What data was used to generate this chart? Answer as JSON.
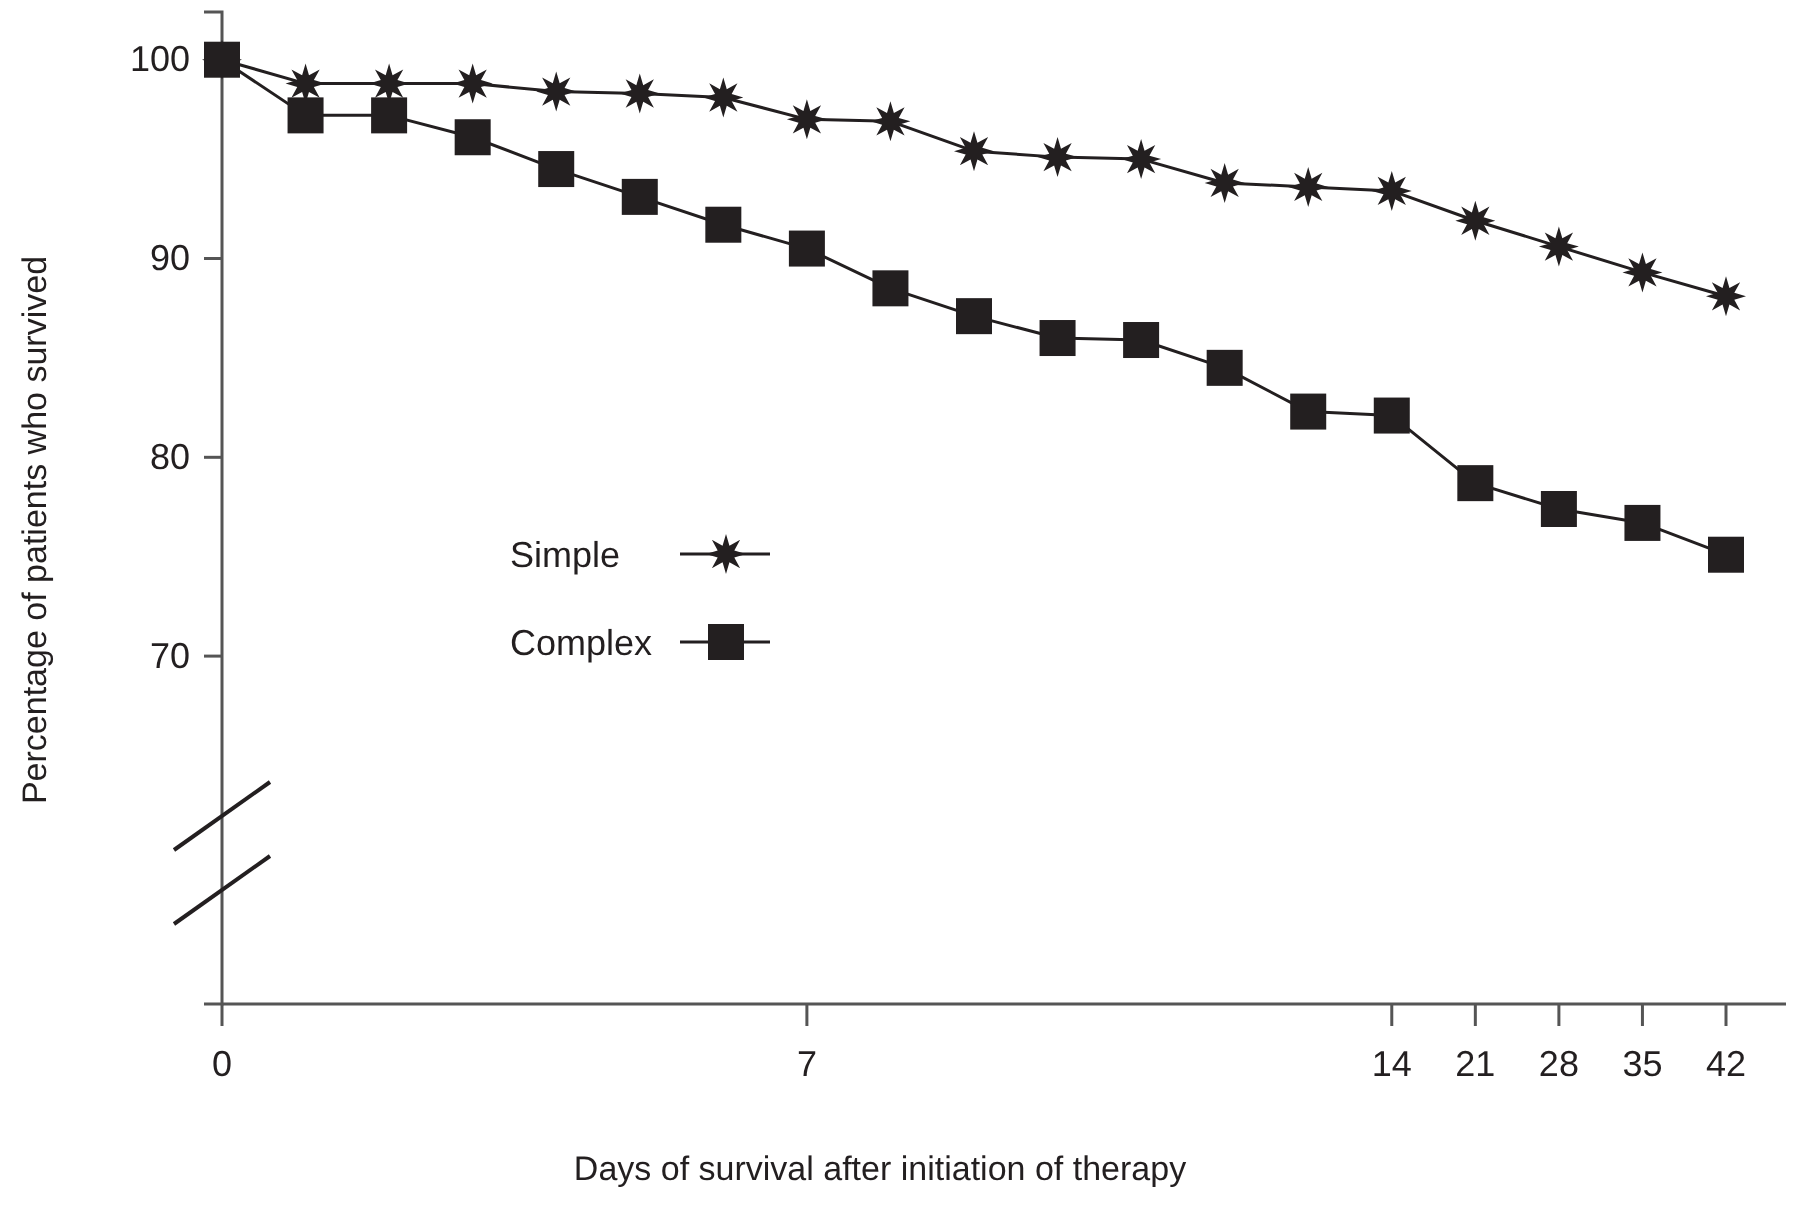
{
  "chart_data": {
    "type": "line",
    "xlabel": "Days of survival after initiation of therapy",
    "ylabel": "Percentage of patients who survived",
    "categories": [
      "0",
      null,
      null,
      null,
      null,
      null,
      null,
      "7",
      null,
      null,
      null,
      null,
      null,
      null,
      "14",
      "21",
      "28",
      "35",
      "42"
    ],
    "ylim": [
      52.5,
      102.4
    ],
    "yticks": [
      70,
      80,
      90,
      100
    ],
    "grid": false,
    "legend": "left",
    "line_style": "solid",
    "series": [
      {
        "name": "Simple",
        "color": "#231f20",
        "marker": "star",
        "values": [
          100,
          98.8,
          98.8,
          98.8,
          98.4,
          98.3,
          98.1,
          97,
          96.9,
          95.4,
          95.1,
          95,
          93.8,
          93.6,
          93.4,
          91.9,
          90.6,
          89.3,
          88.1
        ]
      },
      {
        "name": "Complex",
        "color": "#231f20",
        "marker": "square",
        "values": [
          100,
          97.2,
          97.2,
          96.1,
          94.5,
          93.1,
          91.7,
          90.5,
          88.5,
          87.1,
          86,
          85.9,
          84.5,
          82.3,
          82.1,
          78.7,
          77.4,
          76.7,
          75.1
        ]
      }
    ]
  }
}
